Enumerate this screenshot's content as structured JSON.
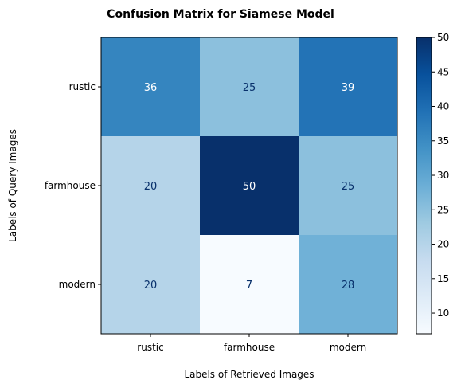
{
  "chart_data": {
    "type": "heatmap",
    "title": "Confusion Matrix for Siamese Model",
    "xlabel": "Labels of Retrieved Images",
    "ylabel": "Labels of Query Images",
    "x_categories": [
      "rustic",
      "farmhouse",
      "modern"
    ],
    "y_categories": [
      "rustic",
      "farmhouse",
      "modern"
    ],
    "values": [
      [
        36,
        25,
        39
      ],
      [
        20,
        50,
        25
      ],
      [
        20,
        7,
        28
      ]
    ],
    "colormap": "Blues",
    "color_range": [
      7,
      50
    ],
    "colorbar_ticks": [
      10,
      15,
      20,
      25,
      30,
      35,
      40,
      45,
      50
    ]
  }
}
